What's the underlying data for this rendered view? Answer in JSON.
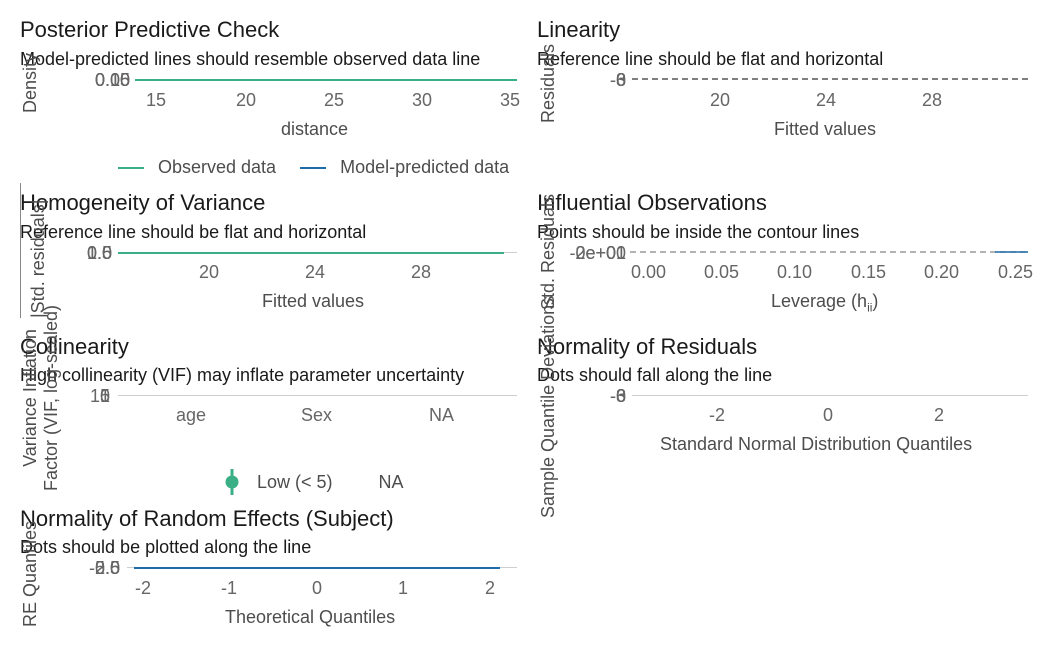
{
  "chart_data": [
    {
      "type": "line",
      "title": "Posterior Predictive Check",
      "subtitle": "Model-predicted lines should resemble observed data line",
      "xlabel": "distance",
      "ylabel": "Density",
      "x_ticks": [
        "15",
        "20",
        "25",
        "30",
        "35"
      ],
      "y_ticks": [
        "0.00",
        "0.05",
        "0.10",
        "0.15"
      ],
      "xlim": [
        13,
        35
      ],
      "legend": [
        "Observed data",
        "Model-predicted data"
      ],
      "legend_position": "bottom",
      "colors": {
        "observed": "#3aaf85",
        "predicted": "#1b6ca8"
      }
    },
    {
      "type": "scatter",
      "title": "Linearity",
      "subtitle": "Reference line should be flat and horizontal",
      "xlabel": "Fitted values",
      "ylabel": "Residuals",
      "x_ticks": [
        "20",
        "24",
        "28"
      ],
      "y_ticks": [
        "-6",
        "-3",
        "0",
        "3"
      ],
      "xlim": [
        16.5,
        31
      ]
    },
    {
      "type": "scatter",
      "title": "Homogeneity of Variance",
      "subtitle": "Reference line should be flat and horizontal",
      "xlabel": "Fitted values",
      "ylabel": "|Std. residuals|",
      "x_ticks": [
        "20",
        "24",
        "28"
      ],
      "y_ticks": [
        "0.0",
        "0.5",
        "1.0",
        "1.5"
      ],
      "xlim": [
        16.5,
        31
      ]
    },
    {
      "type": "scatter",
      "title": "Influential Observations",
      "subtitle": "Points should be inside the contour lines",
      "xlabel": "Leverage (h",
      "xlabel_sub": "ii",
      "xlabel_end": ")",
      "ylabel": "Std. Residuals",
      "x_ticks": [
        "0.00",
        "0.05",
        "0.10",
        "0.15",
        "0.20",
        "0.25"
      ],
      "y_ticks": [
        "-2e+01",
        "0e+00",
        "2e+01"
      ],
      "xlim": [
        0,
        0.26
      ]
    },
    {
      "type": "scatter",
      "title": "Collinearity",
      "subtitle": "High collinearity (VIF) may inflate parameter uncertainty",
      "xlabel": "",
      "ylabel": "Variance Inflation Factor (VIF, log-scaled)",
      "ylabel_line1": "Variance Inflation",
      "ylabel_line2": "Factor (VIF, log-scaled)",
      "categories": [
        "age",
        "Sex",
        "NA"
      ],
      "y_ticks": [
        "1",
        "5",
        "10"
      ],
      "legend": [
        "Low (< 5)",
        "NA"
      ],
      "legend_position": "bottom",
      "colors": {
        "low": "#3aaf85"
      }
    },
    {
      "type": "scatter",
      "title": "Normality of Residuals",
      "subtitle": "Dots should fall along the line",
      "xlabel": "Standard Normal Distribution Quantiles",
      "ylabel": "Sample Quantile Deviations",
      "x_ticks": [
        "-2",
        "0",
        "2"
      ],
      "y_ticks": [
        "-6",
        "-3",
        "0",
        "3"
      ],
      "xlim": [
        -3.5,
        3.6
      ]
    },
    {
      "type": "scatter",
      "title": "Normality of Random Effects (Subject)",
      "subtitle": "Dots should be plotted along the line",
      "xlabel": "Theoretical Quantiles",
      "ylabel": "RE Quantiles",
      "x_ticks": [
        "-2",
        "-1",
        "0",
        "1",
        "2"
      ],
      "y_ticks": [
        "-2.5",
        "0.0",
        "2.5",
        "5.0"
      ],
      "xlim": [
        -2.4,
        2.4
      ]
    }
  ]
}
